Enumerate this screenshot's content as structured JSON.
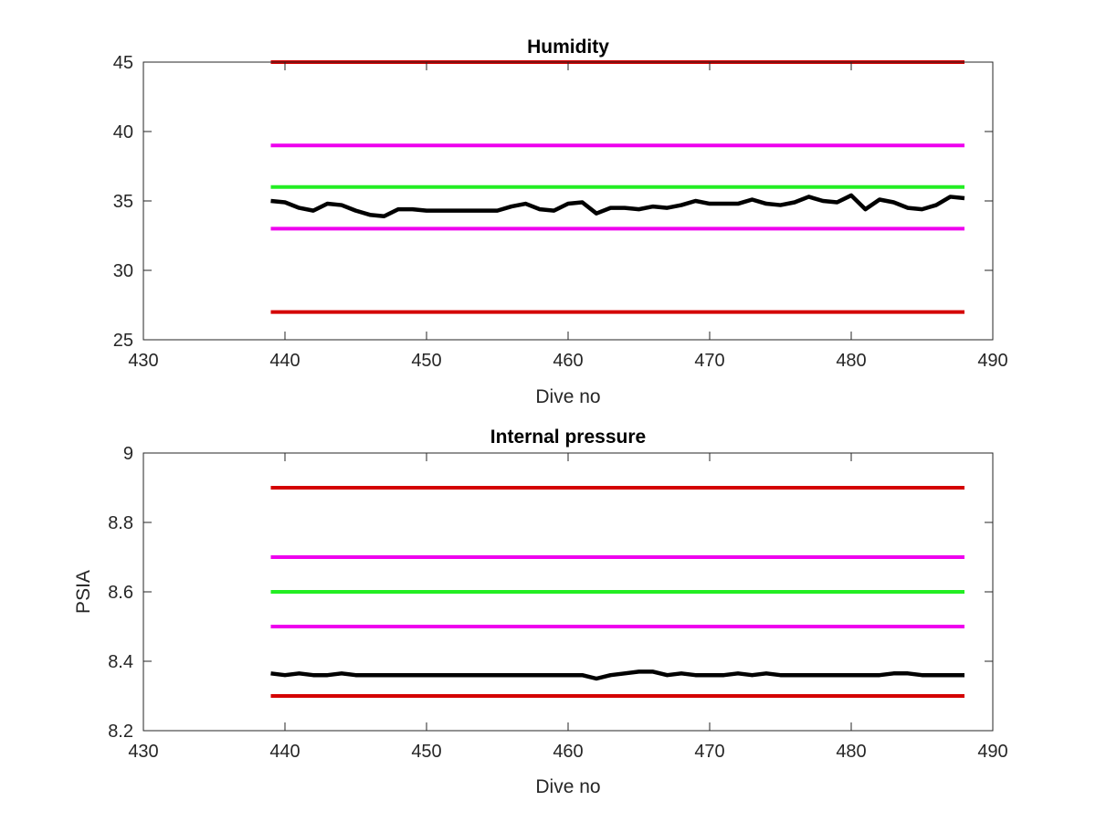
{
  "chart_data": [
    {
      "type": "line",
      "title": "Humidity",
      "xlabel": "Dive no",
      "ylabel": "",
      "xlim": [
        430,
        490
      ],
      "ylim": [
        25,
        45
      ],
      "xticks": [
        "430",
        "440",
        "450",
        "460",
        "470",
        "480",
        "490"
      ],
      "yticks": [
        "25",
        "30",
        "35",
        "40",
        "45"
      ],
      "grid": false,
      "series": [
        {
          "color": "#d40000",
          "x": [
            439,
            488
          ],
          "y": [
            45,
            45
          ]
        },
        {
          "color": "#ee00ee",
          "x": [
            439,
            488
          ],
          "y": [
            39,
            39
          ]
        },
        {
          "color": "#22ee22",
          "x": [
            439,
            488
          ],
          "y": [
            36,
            36
          ]
        },
        {
          "color": "#ee00ee",
          "x": [
            439,
            488
          ],
          "y": [
            33,
            33
          ]
        },
        {
          "color": "#d40000",
          "x": [
            439,
            488
          ],
          "y": [
            27,
            27
          ]
        },
        {
          "color": "#000000",
          "x": [
            439,
            440,
            441,
            442,
            443,
            444,
            445,
            446,
            447,
            448,
            449,
            450,
            451,
            452,
            453,
            454,
            455,
            456,
            457,
            458,
            459,
            460,
            461,
            462,
            463,
            464,
            465,
            466,
            467,
            468,
            469,
            470,
            471,
            472,
            473,
            474,
            475,
            476,
            477,
            478,
            479,
            480,
            481,
            482,
            483,
            484,
            485,
            486,
            487,
            488
          ],
          "y": [
            35.0,
            34.9,
            34.5,
            34.3,
            34.8,
            34.7,
            34.3,
            34.0,
            33.9,
            34.4,
            34.4,
            34.3,
            34.3,
            34.3,
            34.3,
            34.3,
            34.3,
            34.6,
            34.8,
            34.4,
            34.3,
            34.8,
            34.9,
            34.1,
            34.5,
            34.5,
            34.4,
            34.6,
            34.5,
            34.7,
            35.0,
            34.8,
            34.8,
            34.8,
            35.1,
            34.8,
            34.7,
            34.9,
            35.3,
            35.0,
            34.9,
            35.4,
            34.4,
            35.1,
            34.9,
            34.5,
            34.4,
            34.7,
            35.3,
            35.2
          ]
        }
      ]
    },
    {
      "type": "line",
      "title": "Internal pressure",
      "xlabel": "Dive no",
      "ylabel": "PSIA",
      "xlim": [
        430,
        490
      ],
      "ylim": [
        8.2,
        9.0
      ],
      "xticks": [
        "430",
        "440",
        "450",
        "460",
        "470",
        "480",
        "490"
      ],
      "yticks": [
        "8.2",
        "8.4",
        "8.6",
        "8.8",
        "9"
      ],
      "grid": false,
      "series": [
        {
          "color": "#d40000",
          "x": [
            439,
            488
          ],
          "y": [
            8.9,
            8.9
          ]
        },
        {
          "color": "#ee00ee",
          "x": [
            439,
            488
          ],
          "y": [
            8.7,
            8.7
          ]
        },
        {
          "color": "#22ee22",
          "x": [
            439,
            488
          ],
          "y": [
            8.6,
            8.6
          ]
        },
        {
          "color": "#ee00ee",
          "x": [
            439,
            488
          ],
          "y": [
            8.5,
            8.5
          ]
        },
        {
          "color": "#d40000",
          "x": [
            439,
            488
          ],
          "y": [
            8.3,
            8.3
          ]
        },
        {
          "color": "#000000",
          "x": [
            439,
            440,
            441,
            442,
            443,
            444,
            445,
            446,
            447,
            448,
            449,
            450,
            451,
            452,
            453,
            454,
            455,
            456,
            457,
            458,
            459,
            460,
            461,
            462,
            463,
            464,
            465,
            466,
            467,
            468,
            469,
            470,
            471,
            472,
            473,
            474,
            475,
            476,
            477,
            478,
            479,
            480,
            481,
            482,
            483,
            484,
            485,
            486,
            487,
            488
          ],
          "y": [
            8.365,
            8.36,
            8.365,
            8.36,
            8.36,
            8.365,
            8.36,
            8.36,
            8.36,
            8.36,
            8.36,
            8.36,
            8.36,
            8.36,
            8.36,
            8.36,
            8.36,
            8.36,
            8.36,
            8.36,
            8.36,
            8.36,
            8.36,
            8.35,
            8.36,
            8.365,
            8.37,
            8.37,
            8.36,
            8.365,
            8.36,
            8.36,
            8.36,
            8.365,
            8.36,
            8.365,
            8.36,
            8.36,
            8.36,
            8.36,
            8.36,
            8.36,
            8.36,
            8.36,
            8.365,
            8.365,
            8.36,
            8.36,
            8.36,
            8.36
          ]
        }
      ]
    }
  ]
}
